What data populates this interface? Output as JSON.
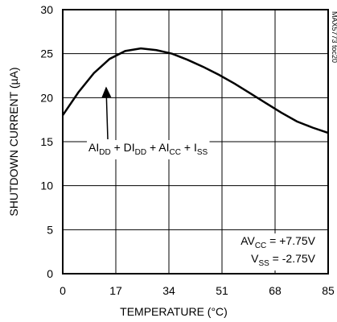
{
  "chart_data": {
    "type": "line",
    "x_label": "TEMPERATURE (°C)",
    "y_label": "SHUTDOWN CURRENT (µA)",
    "x": [
      0,
      5,
      10,
      15,
      20,
      25,
      30,
      35,
      40,
      45,
      50,
      55,
      60,
      65,
      70,
      75,
      80,
      85
    ],
    "series": [
      {
        "color": "#000000",
        "values": [
          18.0,
          20.6,
          22.8,
          24.4,
          25.3,
          25.6,
          25.4,
          25.0,
          24.3,
          23.5,
          22.6,
          21.6,
          20.5,
          19.4,
          18.3,
          17.3,
          16.6,
          16.0
        ]
      }
    ],
    "xlim": [
      0,
      85
    ],
    "xticks": [
      0,
      17,
      34,
      51,
      68,
      85
    ],
    "ylim": [
      0,
      30
    ],
    "yticks": [
      0,
      5,
      10,
      15,
      20,
      25,
      30
    ],
    "grid": true,
    "annotation": [
      "AI",
      "DD",
      " + DI",
      "DD",
      " + AI",
      "CC",
      " + I",
      "SS"
    ],
    "conditions": [
      [
        "AV",
        "CC",
        " = +7.75V"
      ],
      [
        "V",
        "SS",
        " = -2.75V"
      ]
    ],
    "figure_code": "MAX5773 toc20"
  }
}
